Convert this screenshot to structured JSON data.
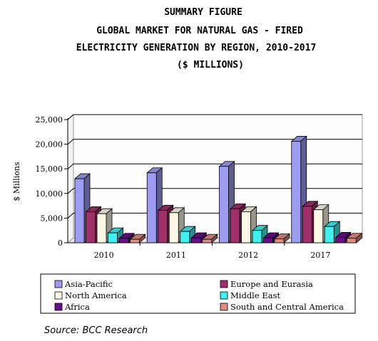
{
  "titles": {
    "line1": "SUMMARY FIGURE",
    "line2": "GLOBAL MARKET FOR NATURAL GAS - FIRED",
    "line3": "ELECTRICITY GENERATION BY REGION, 2010-2017",
    "line4": "($ MILLIONS)"
  },
  "source": "Source: BCC Research",
  "chart_data": {
    "type": "bar",
    "title": "",
    "xlabel": "",
    "ylabel": "$ Millions",
    "ylim": [
      0,
      25000
    ],
    "yticks": [
      "0",
      "5,000",
      "10,000",
      "15,000",
      "20,000",
      "25,000"
    ],
    "categories": [
      "2010",
      "2011",
      "2012",
      "2017"
    ],
    "grid": true,
    "legend_position": "bottom",
    "series": [
      {
        "name": "Asia-Pacific",
        "color": "#9c9cf0",
        "values": [
          13000,
          14200,
          15500,
          20600
        ]
      },
      {
        "name": "Europe and Eurasia",
        "color": "#a0306a",
        "values": [
          6300,
          6600,
          6900,
          7400
        ]
      },
      {
        "name": "North America",
        "color": "#fbf8e6",
        "values": [
          5900,
          6100,
          6300,
          6700
        ]
      },
      {
        "name": "Middle East",
        "color": "#3ff0f0",
        "values": [
          2000,
          2300,
          2500,
          3300
        ]
      },
      {
        "name": "Africa",
        "color": "#6a0d8a",
        "values": [
          900,
          1000,
          1000,
          1100
        ]
      },
      {
        "name": "South and Central America",
        "color": "#e08c80",
        "values": [
          700,
          700,
          800,
          900
        ]
      }
    ]
  }
}
